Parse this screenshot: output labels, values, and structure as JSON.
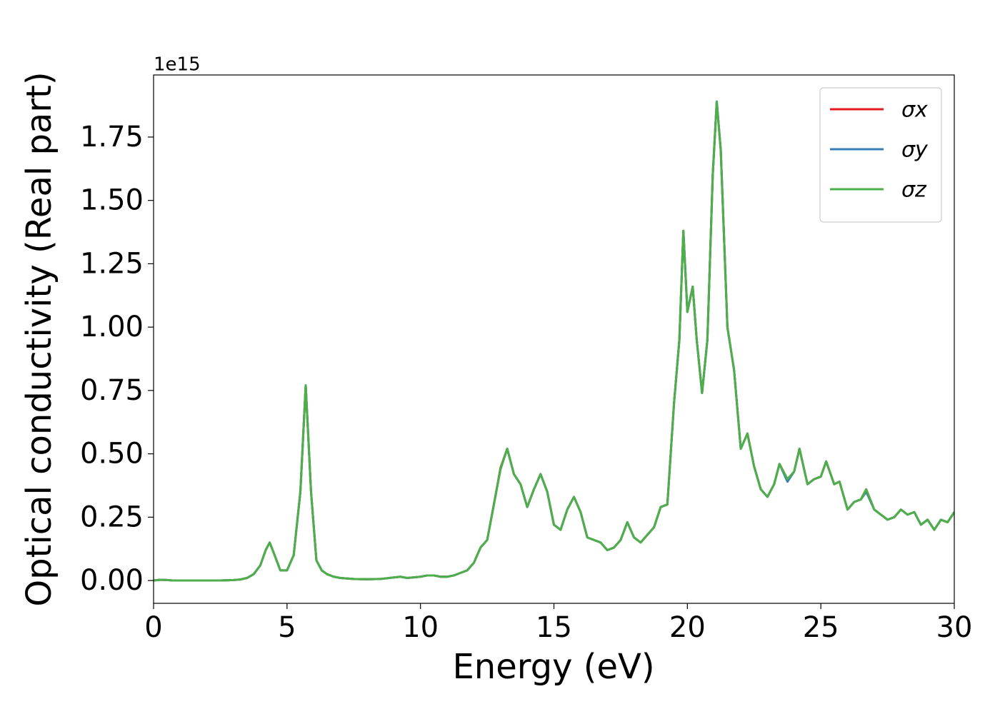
{
  "chart_data": {
    "type": "line",
    "xlabel": "Energy (eV)",
    "ylabel": "Optical conductivity (Real part)",
    "offset_label": "1e15",
    "xlim": [
      0,
      30
    ],
    "ylim": [
      -0.09,
      1.995
    ],
    "xticks": [
      0,
      5,
      10,
      15,
      20,
      25,
      30
    ],
    "yticks": [
      {
        "value": 0,
        "label": "0.00"
      },
      {
        "value": 0.25,
        "label": "0.25"
      },
      {
        "value": 0.5,
        "label": "0.50"
      },
      {
        "value": 0.75,
        "label": "0.75"
      },
      {
        "value": 1,
        "label": "1.00"
      },
      {
        "value": 1.25,
        "label": "1.25"
      },
      {
        "value": 1.5,
        "label": "1.50"
      },
      {
        "value": 1.75,
        "label": "1.75"
      }
    ],
    "legend": "upper right",
    "x": [
      0,
      0.25,
      0.5,
      0.75,
      1,
      1.5,
      2,
      2.5,
      3,
      3.25,
      3.5,
      3.75,
      4,
      4.2,
      4.35,
      4.5,
      4.75,
      5,
      5.25,
      5.5,
      5.7,
      5.9,
      6.1,
      6.3,
      6.5,
      6.75,
      7,
      7.5,
      8,
      8.5,
      9,
      9.25,
      9.5,
      10,
      10.25,
      10.5,
      10.75,
      11,
      11.25,
      11.5,
      11.75,
      12,
      12.25,
      12.5,
      12.75,
      13,
      13.25,
      13.5,
      13.75,
      14,
      14.25,
      14.5,
      14.75,
      15,
      15.25,
      15.5,
      15.75,
      16,
      16.25,
      16.5,
      16.75,
      17,
      17.25,
      17.5,
      17.75,
      18,
      18.25,
      18.5,
      18.75,
      19,
      19.25,
      19.5,
      19.7,
      19.85,
      20,
      20.2,
      20.35,
      20.55,
      20.75,
      20.95,
      21.1,
      21.25,
      21.5,
      21.75,
      22,
      22.25,
      22.5,
      22.75,
      23,
      23.25,
      23.45,
      23.75,
      24,
      24.2,
      24.5,
      24.75,
      25,
      25.2,
      25.5,
      25.7,
      26,
      26.25,
      26.5,
      26.7,
      27,
      27.25,
      27.5,
      27.75,
      28,
      28.25,
      28.5,
      28.75,
      29,
      29.25,
      29.5,
      29.75,
      30
    ],
    "series": [
      {
        "name": "σx",
        "color": "#e41a1c",
        "values": [
          0,
          0.003,
          0.002,
          0,
          0,
          0,
          0,
          0,
          0.002,
          0.004,
          0.01,
          0.025,
          0.06,
          0.12,
          0.15,
          0.11,
          0.04,
          0.04,
          0.1,
          0.35,
          0.77,
          0.35,
          0.08,
          0.04,
          0.025,
          0.015,
          0.01,
          0.006,
          0.005,
          0.006,
          0.012,
          0.015,
          0.01,
          0.015,
          0.02,
          0.02,
          0.015,
          0.015,
          0.02,
          0.03,
          0.04,
          0.07,
          0.13,
          0.16,
          0.3,
          0.445,
          0.52,
          0.42,
          0.38,
          0.29,
          0.36,
          0.42,
          0.35,
          0.22,
          0.2,
          0.28,
          0.33,
          0.27,
          0.17,
          0.16,
          0.15,
          0.12,
          0.13,
          0.16,
          0.23,
          0.17,
          0.15,
          0.18,
          0.21,
          0.29,
          0.3,
          0.7,
          0.95,
          1.38,
          1.06,
          1.16,
          0.95,
          0.74,
          0.95,
          1.6,
          1.89,
          1.7,
          1.0,
          0.83,
          0.52,
          0.58,
          0.45,
          0.36,
          0.33,
          0.38,
          0.46,
          0.4,
          0.43,
          0.52,
          0.38,
          0.4,
          0.41,
          0.47,
          0.38,
          0.39,
          0.28,
          0.31,
          0.32,
          0.36,
          0.28,
          0.26,
          0.24,
          0.25,
          0.28,
          0.26,
          0.27,
          0.22,
          0.24,
          0.2,
          0.24,
          0.23,
          0.27
        ]
      },
      {
        "name": "σy",
        "color": "#377eb8",
        "values": [
          0,
          0.003,
          0.002,
          0,
          0,
          0,
          0,
          0,
          0.002,
          0.004,
          0.01,
          0.025,
          0.06,
          0.12,
          0.15,
          0.11,
          0.04,
          0.04,
          0.1,
          0.35,
          0.77,
          0.35,
          0.08,
          0.04,
          0.025,
          0.015,
          0.01,
          0.006,
          0.005,
          0.006,
          0.012,
          0.015,
          0.01,
          0.015,
          0.02,
          0.02,
          0.015,
          0.015,
          0.02,
          0.03,
          0.04,
          0.07,
          0.13,
          0.16,
          0.3,
          0.44,
          0.52,
          0.42,
          0.38,
          0.29,
          0.36,
          0.42,
          0.35,
          0.22,
          0.2,
          0.28,
          0.33,
          0.27,
          0.17,
          0.16,
          0.15,
          0.12,
          0.13,
          0.16,
          0.23,
          0.17,
          0.15,
          0.18,
          0.21,
          0.29,
          0.3,
          0.7,
          0.95,
          1.38,
          1.06,
          1.16,
          0.95,
          0.74,
          0.95,
          1.6,
          1.89,
          1.7,
          1.0,
          0.83,
          0.52,
          0.58,
          0.45,
          0.36,
          0.33,
          0.38,
          0.46,
          0.39,
          0.43,
          0.52,
          0.38,
          0.4,
          0.41,
          0.47,
          0.38,
          0.39,
          0.28,
          0.31,
          0.32,
          0.35,
          0.28,
          0.26,
          0.24,
          0.25,
          0.28,
          0.26,
          0.27,
          0.22,
          0.24,
          0.2,
          0.24,
          0.23,
          0.27
        ]
      },
      {
        "name": "σz",
        "color": "#4daf4a",
        "values": [
          0,
          0.003,
          0.002,
          0,
          0,
          0,
          0,
          0,
          0.002,
          0.004,
          0.01,
          0.025,
          0.06,
          0.12,
          0.15,
          0.11,
          0.04,
          0.04,
          0.1,
          0.35,
          0.77,
          0.35,
          0.08,
          0.04,
          0.025,
          0.015,
          0.01,
          0.006,
          0.005,
          0.006,
          0.012,
          0.015,
          0.01,
          0.015,
          0.02,
          0.02,
          0.015,
          0.015,
          0.02,
          0.03,
          0.04,
          0.07,
          0.13,
          0.16,
          0.3,
          0.44,
          0.52,
          0.42,
          0.38,
          0.29,
          0.36,
          0.42,
          0.35,
          0.22,
          0.2,
          0.28,
          0.33,
          0.27,
          0.17,
          0.16,
          0.15,
          0.12,
          0.13,
          0.16,
          0.23,
          0.17,
          0.15,
          0.18,
          0.21,
          0.29,
          0.3,
          0.7,
          0.95,
          1.38,
          1.06,
          1.16,
          0.95,
          0.74,
          0.95,
          1.6,
          1.89,
          1.7,
          1.0,
          0.83,
          0.52,
          0.58,
          0.45,
          0.36,
          0.33,
          0.38,
          0.46,
          0.4,
          0.43,
          0.52,
          0.38,
          0.4,
          0.41,
          0.47,
          0.38,
          0.39,
          0.28,
          0.31,
          0.32,
          0.36,
          0.28,
          0.26,
          0.24,
          0.25,
          0.28,
          0.26,
          0.27,
          0.22,
          0.24,
          0.2,
          0.24,
          0.23,
          0.27
        ]
      }
    ]
  }
}
